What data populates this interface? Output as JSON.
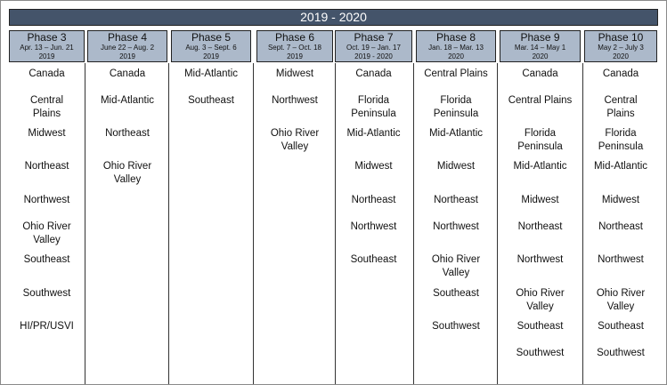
{
  "banner": "2019 - 2020",
  "colors": {
    "banner": "#44546a",
    "header": "#acb9ca"
  },
  "phases": [
    {
      "title": "Phase 3",
      "dates": "Apr. 13 – Jun. 21",
      "year": "2019",
      "regions": [
        "Canada",
        "Central Plains",
        "Midwest",
        "Northeast",
        "Northwest",
        "Ohio River Valley",
        "Southeast",
        "Southwest",
        "HI/PR/USVI"
      ]
    },
    {
      "title": "Phase 4",
      "dates": "June 22 – Aug. 2",
      "year": "2019",
      "regions": [
        "Canada",
        "Mid-Atlantic",
        "Northeast",
        "Ohio River Valley"
      ]
    },
    {
      "title": "Phase 5",
      "dates": "Aug. 3 – Sept. 6",
      "year": "2019",
      "regions": [
        "Mid-Atlantic",
        "Southeast"
      ]
    },
    {
      "title": "Phase 6",
      "dates": "Sept. 7 – Oct. 18",
      "year": "2019",
      "regions": [
        "Midwest",
        "Northwest",
        "Ohio River Valley"
      ]
    },
    {
      "title": "Phase 7",
      "dates": "Oct. 19 – Jan. 17",
      "year": "2019 - 2020",
      "regions": [
        "Canada",
        "Florida Peninsula",
        "Mid-Atlantic",
        "Midwest",
        "Northeast",
        "Northwest",
        "Southeast"
      ]
    },
    {
      "title": "Phase 8",
      "dates": "Jan. 18 – Mar. 13",
      "year": "2020",
      "regions": [
        "Central Plains",
        "Florida Peninsula",
        "Mid-Atlantic",
        "Midwest",
        "Northeast",
        "Northwest",
        "Ohio River Valley",
        "Southeast",
        "Southwest"
      ]
    },
    {
      "title": "Phase 9",
      "dates": "Mar. 14 – May 1",
      "year": "2020",
      "regions": [
        "Canada",
        "Central Plains",
        "Florida Peninsula",
        "Mid-Atlantic",
        "Midwest",
        "Northeast",
        "Northwest",
        "Ohio River Valley",
        "Southeast",
        "Southwest"
      ]
    },
    {
      "title": "Phase 10",
      "dates": "May 2 – July 3",
      "year": "2020",
      "regions": [
        "Canada",
        "Central Plains",
        "Florida Peninsula",
        "Mid-Atlantic",
        "Midwest",
        "Northeast",
        "Northwest",
        "Ohio River Valley",
        "Southeast",
        "Southwest"
      ]
    }
  ]
}
